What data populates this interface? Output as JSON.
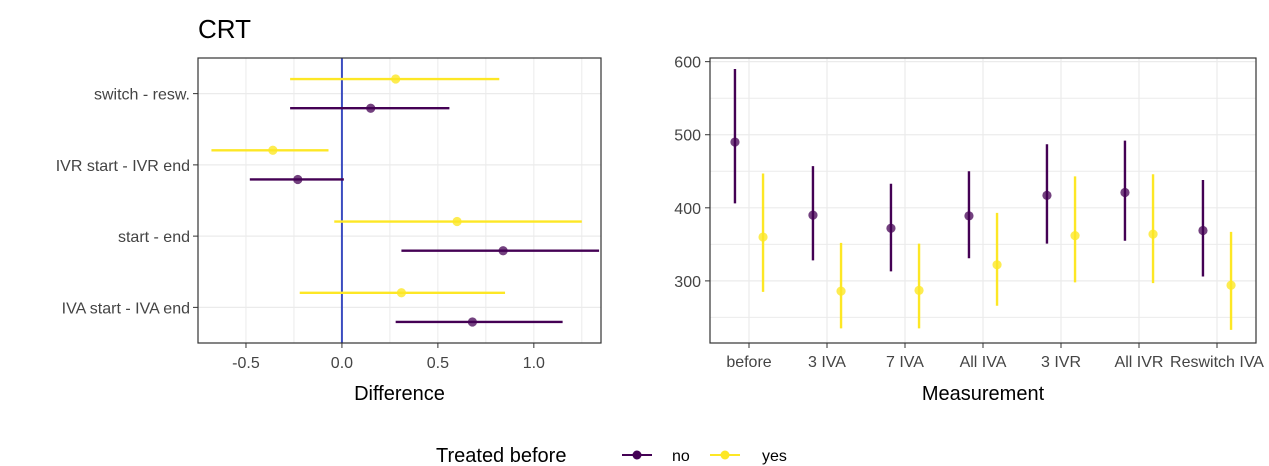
{
  "title": "CRT",
  "colors": {
    "no": "#440154",
    "yes": "#fde725",
    "zero_line": "#3b4cc0",
    "grid": "#ebebeb",
    "panel_border": "#333333"
  },
  "legend": {
    "title": "Treated before",
    "items": [
      {
        "label": "no",
        "color": "#440154"
      },
      {
        "label": "yes",
        "color": "#fde725"
      }
    ]
  },
  "chart_data": [
    {
      "type": "scatter",
      "subtype": "forest-plot",
      "xlabel": "Difference",
      "ylabel": "",
      "xlim": [
        -0.75,
        1.35
      ],
      "xticks": [
        -0.5,
        0.0,
        0.5,
        1.0
      ],
      "xtick_labels": [
        "-0.5",
        "0.0",
        "0.5",
        "1.0"
      ],
      "reference_line_x": 0,
      "grid": true,
      "categories": [
        "switch - resw.",
        "IVR start - IVR end",
        "start - end",
        "IVA start - IVA end"
      ],
      "series": [
        {
          "name": "no",
          "estimate": [
            0.15,
            -0.23,
            0.84,
            0.68
          ],
          "lower": [
            -0.27,
            -0.48,
            0.31,
            0.28
          ],
          "upper": [
            0.56,
            0.01,
            1.34,
            1.15
          ]
        },
        {
          "name": "yes",
          "estimate": [
            0.28,
            -0.36,
            0.6,
            0.31
          ],
          "lower": [
            -0.27,
            -0.68,
            -0.04,
            -0.22
          ],
          "upper": [
            0.82,
            -0.07,
            1.25,
            0.85
          ]
        }
      ]
    },
    {
      "type": "scatter",
      "subtype": "point-range",
      "xlabel": "Measurement",
      "ylabel": "",
      "ylim": [
        215,
        605
      ],
      "yticks": [
        300,
        400,
        500,
        600
      ],
      "grid": true,
      "categories": [
        "before",
        "3 IVA",
        "7 IVA",
        "All IVA",
        "3 IVR",
        "All IVR",
        "Reswitch IVA"
      ],
      "series": [
        {
          "name": "no",
          "estimate": [
            490,
            390,
            372,
            389,
            417,
            421,
            369
          ],
          "lower": [
            406,
            328,
            313,
            331,
            351,
            355,
            306
          ],
          "upper": [
            590,
            457,
            433,
            450,
            487,
            492,
            438
          ]
        },
        {
          "name": "yes",
          "estimate": [
            360,
            286,
            287,
            322,
            362,
            364,
            294
          ],
          "lower": [
            285,
            235,
            235,
            266,
            298,
            297,
            233
          ],
          "upper": [
            447,
            352,
            351,
            393,
            443,
            446,
            367
          ]
        }
      ]
    }
  ]
}
